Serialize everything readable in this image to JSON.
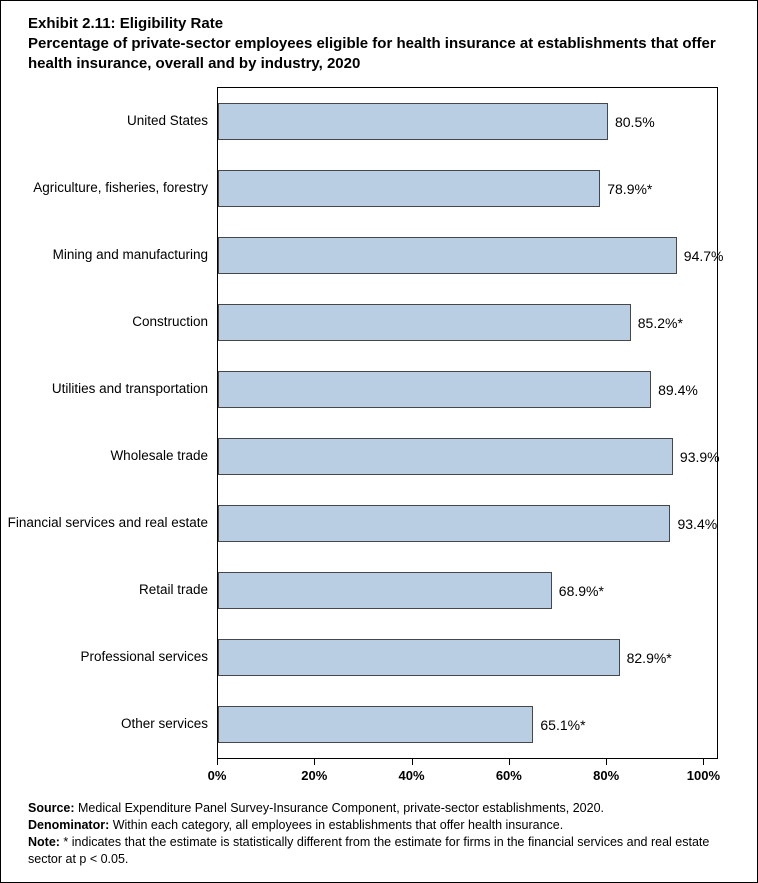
{
  "title": "Exhibit 2.11: Eligibility Rate",
  "subtitle": "Percentage of private-sector employees eligible for health insurance at establishments that offer health insurance, overall and by industry, 2020",
  "chart_data": {
    "type": "bar",
    "orientation": "horizontal",
    "categories": [
      "United States",
      "Agriculture, fisheries, forestry",
      "Mining and manufacturing",
      "Construction",
      "Utilities and transportation",
      "Wholesale trade",
      "Financial services and real estate",
      "Retail trade",
      "Professional services",
      "Other services"
    ],
    "values": [
      80.5,
      78.9,
      94.7,
      85.2,
      89.4,
      93.9,
      93.4,
      68.9,
      82.9,
      65.1
    ],
    "value_labels": [
      "80.5%",
      "78.9%*",
      "94.7%",
      "85.2%*",
      "89.4%",
      "93.9%",
      "93.4%",
      "68.9%*",
      "82.9%*",
      "65.1%*"
    ],
    "xlabel": "",
    "ylabel": "",
    "xlim": [
      0,
      103
    ],
    "x_tick_values": [
      0,
      20,
      40,
      60,
      80,
      100
    ],
    "x_tick_labels": [
      "0%",
      "20%",
      "40%",
      "60%",
      "80%",
      "100%"
    ],
    "grid": false,
    "legend": "none",
    "bar_color": "#b9cde3",
    "bar_border_color": "#474747"
  },
  "notes": [
    {
      "lead": "Source:",
      "text": " Medical Expenditure Panel Survey-Insurance Component, private-sector establishments, 2020."
    },
    {
      "lead": "Denominator:",
      "text": " Within each category, all employees in establishments that offer health insurance."
    },
    {
      "lead": "Note:",
      "text": " * indicates that the estimate is statistically different from the estimate for firms in the financial services and real estate sector at p < 0.05."
    }
  ]
}
